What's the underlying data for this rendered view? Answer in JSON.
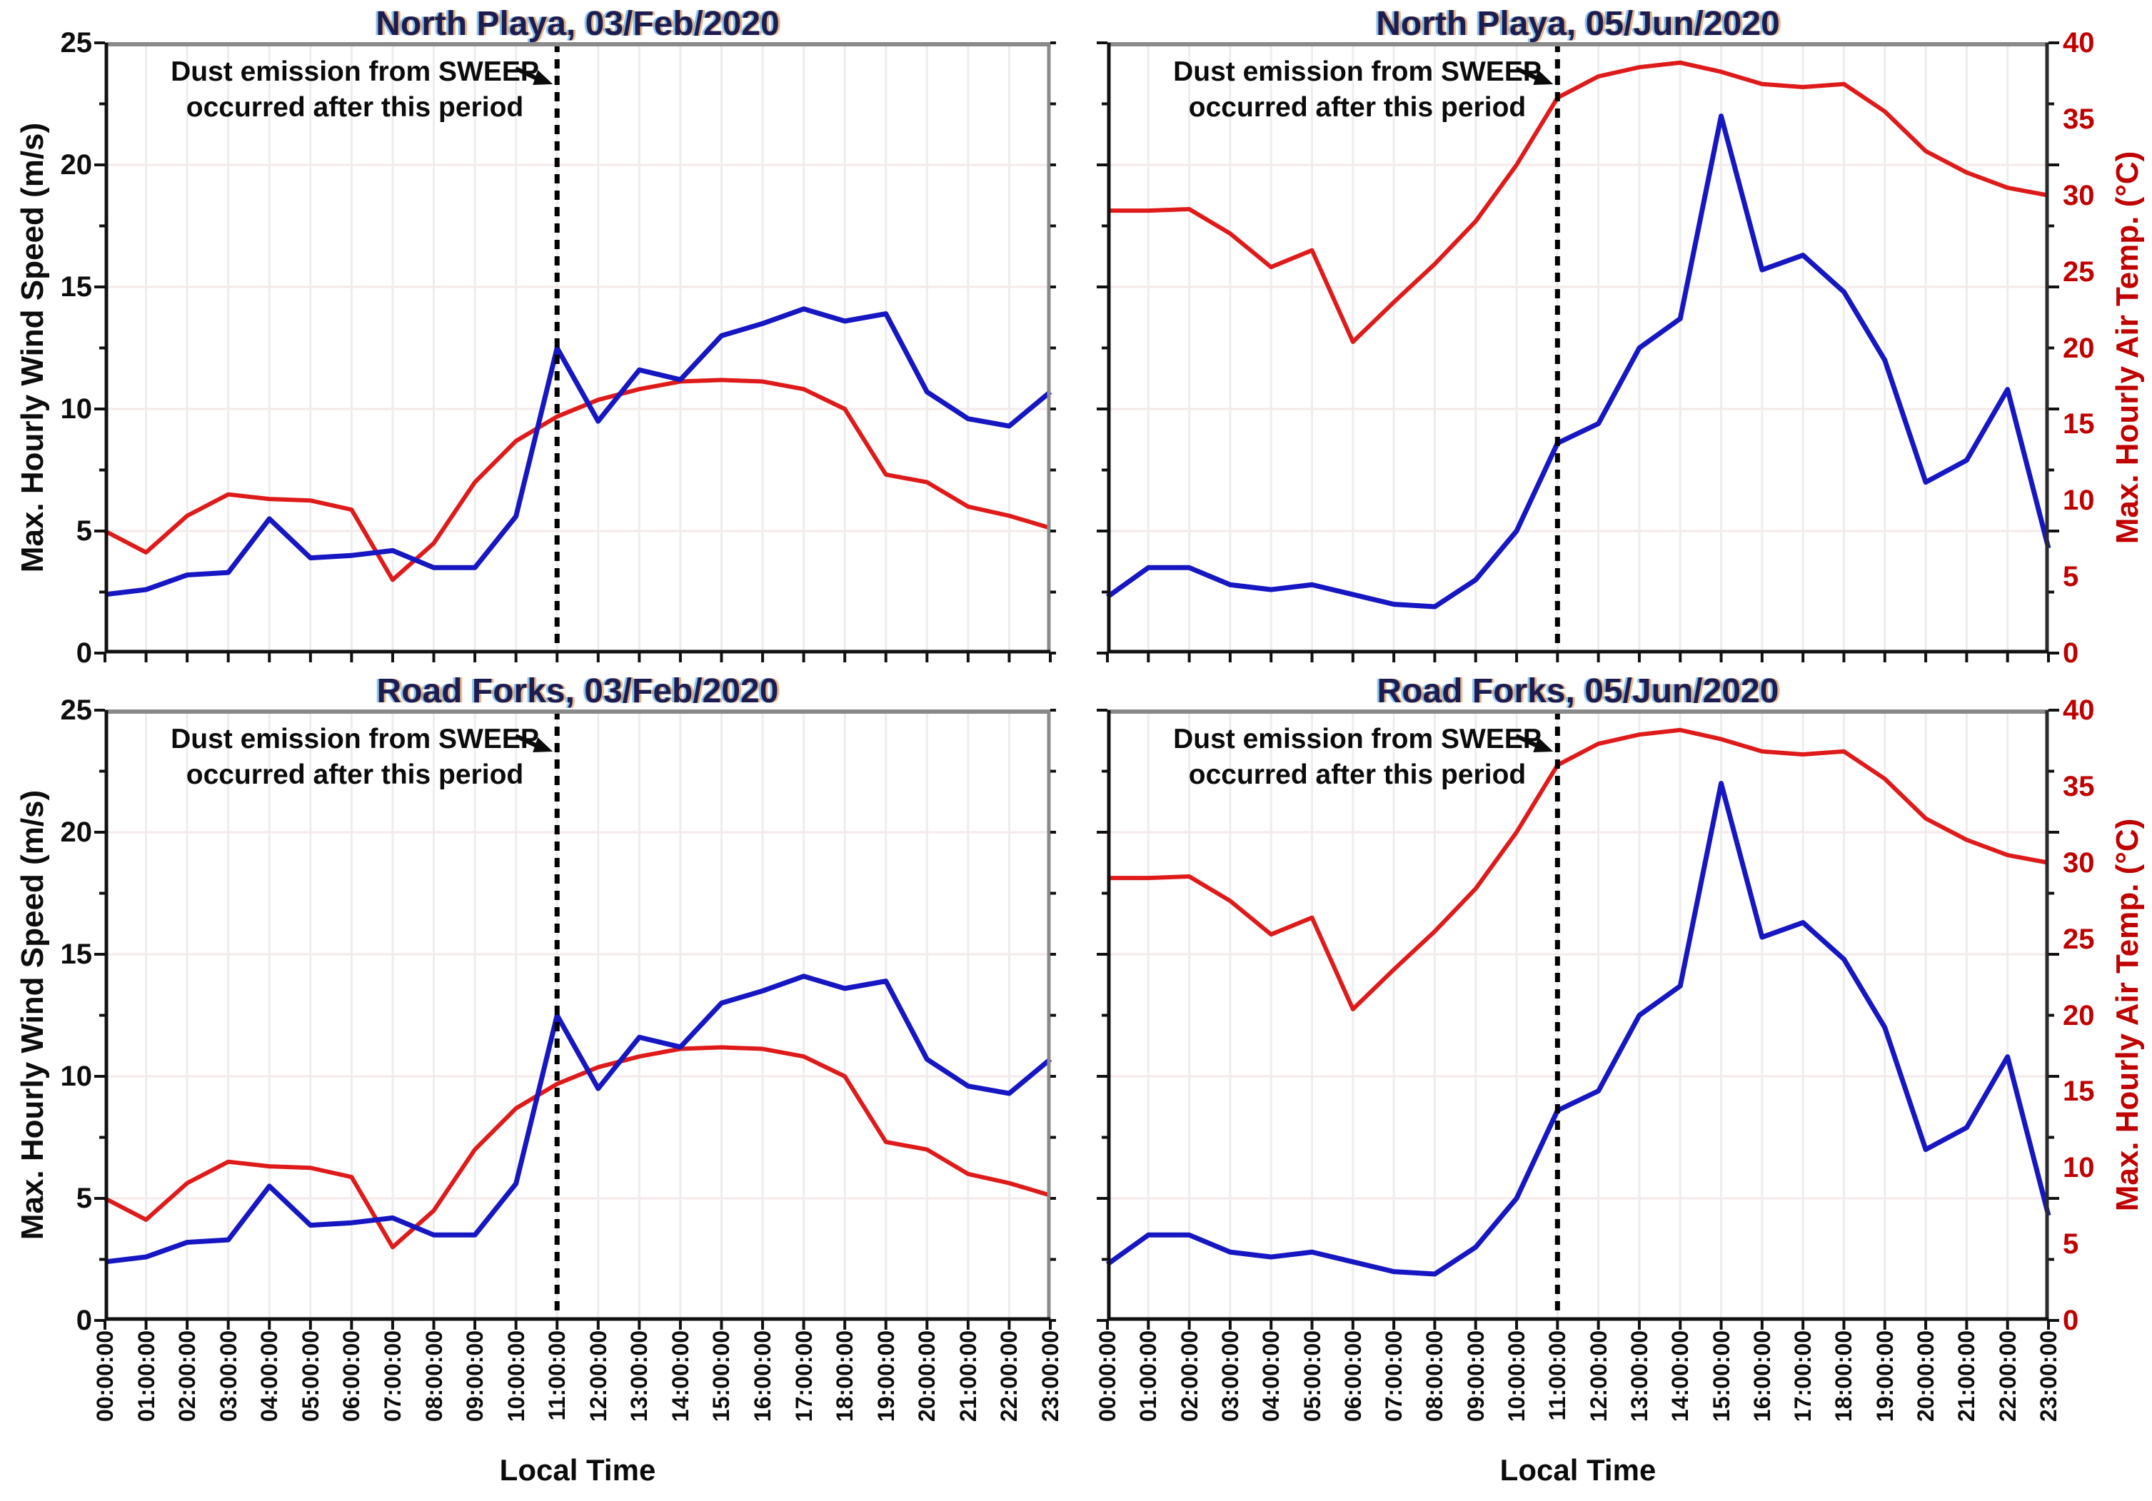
{
  "figure": {
    "xlabel": "Local Time",
    "ylabel_left": "Max. Hourly Wind Speed (m/s)",
    "ylabel_right": "Max. Hourly Air Temp. (°C)",
    "annotation": {
      "line1": "Dust emission from SWEEP",
      "line2": "occurred after this period"
    },
    "grid": true,
    "legend": "none",
    "vline_style": "black dashed vertical line at 11:00:00",
    "colors": {
      "wind_line": "#1616c3",
      "temp_line": "#df1a1a",
      "red_axis_text": "#c00000",
      "title_text": "#1c1c50",
      "grid_vertical": "#ededed",
      "grid_horizontal": "#f6e9e9",
      "spine_dark": "#111111",
      "spine_gray": "#8a8a8a",
      "dashed_line": "#000000"
    },
    "y_left_ticks": [
      "0",
      "5",
      "10",
      "15",
      "20",
      "25"
    ],
    "y_right_ticks": [
      "0",
      "5",
      "10",
      "15",
      "20",
      "25",
      "30",
      "35",
      "40"
    ],
    "x_tick_labels": [
      "00:00:00",
      "01:00:00",
      "02:00:00",
      "03:00:00",
      "04:00:00",
      "05:00:00",
      "06:00:00",
      "07:00:00",
      "08:00:00",
      "09:00:00",
      "10:00:00",
      "11:00:00",
      "12:00:00",
      "13:00:00",
      "14:00:00",
      "15:00:00",
      "16:00:00",
      "17:00:00",
      "18:00:00",
      "19:00:00",
      "20:00:00",
      "21:00:00",
      "22:00:00",
      "23:00:00"
    ]
  },
  "chart_data": [
    {
      "type": "line",
      "position": "top-left",
      "title": "North Playa, 03/Feb/2020",
      "x_hours": [
        0,
        1,
        2,
        3,
        4,
        5,
        6,
        7,
        8,
        9,
        10,
        11,
        12,
        13,
        14,
        15,
        16,
        17,
        18,
        19,
        20,
        21,
        22,
        23
      ],
      "vline_hour": 11,
      "show_x_tick_labels": false,
      "show_left_axis_labels": true,
      "show_right_axis_labels": false,
      "series": [
        {
          "name": "Max. Hourly Wind Speed (m/s)",
          "axis": "left",
          "ylim": [
            0,
            25
          ],
          "color": "#1616c3",
          "values": [
            2.4,
            2.6,
            3.2,
            3.3,
            5.5,
            3.9,
            4.0,
            4.2,
            3.5,
            3.5,
            5.6,
            12.5,
            9.5,
            11.6,
            11.2,
            13.0,
            13.5,
            14.1,
            13.6,
            13.9,
            10.7,
            9.6,
            9.3,
            10.7
          ]
        },
        {
          "name": "Max. Hourly Air Temp. (°C)",
          "axis": "right",
          "ylim": [
            0,
            40
          ],
          "color": "#df1a1a",
          "values": [
            8.0,
            6.6,
            9.0,
            10.4,
            10.1,
            10.0,
            9.4,
            4.8,
            7.2,
            11.2,
            13.9,
            15.5,
            16.6,
            17.3,
            17.8,
            17.9,
            17.8,
            17.3,
            16.0,
            11.7,
            11.2,
            9.6,
            9.0,
            8.2
          ]
        }
      ]
    },
    {
      "type": "line",
      "position": "top-right",
      "title": "North Playa, 05/Jun/2020",
      "x_hours": [
        0,
        1,
        2,
        3,
        4,
        5,
        6,
        7,
        8,
        9,
        10,
        11,
        12,
        13,
        14,
        15,
        16,
        17,
        18,
        19,
        20,
        21,
        22,
        23
      ],
      "vline_hour": 11,
      "show_x_tick_labels": false,
      "show_left_axis_labels": false,
      "show_right_axis_labels": true,
      "series": [
        {
          "name": "Max. Hourly Wind Speed (m/s)",
          "axis": "left",
          "ylim": [
            0,
            25
          ],
          "color": "#1616c3",
          "values": [
            2.3,
            3.5,
            3.5,
            2.8,
            2.6,
            2.8,
            2.4,
            2.0,
            1.9,
            3.0,
            5.0,
            8.6,
            9.4,
            12.5,
            13.7,
            22.0,
            15.7,
            16.3,
            14.8,
            12.0,
            7.0,
            7.9,
            10.8,
            4.3
          ]
        },
        {
          "name": "Max. Hourly Air Temp. (°C)",
          "axis": "right",
          "ylim": [
            0,
            40
          ],
          "color": "#df1a1a",
          "values": [
            29.0,
            29.0,
            29.1,
            27.5,
            25.3,
            26.4,
            20.4,
            23.0,
            25.5,
            28.3,
            32.0,
            36.4,
            37.8,
            38.4,
            38.7,
            38.1,
            37.3,
            37.1,
            37.3,
            35.5,
            32.9,
            31.5,
            30.5,
            30.0
          ]
        }
      ]
    },
    {
      "type": "line",
      "position": "bottom-left",
      "title": "Road Forks, 03/Feb/2020",
      "x_hours": [
        0,
        1,
        2,
        3,
        4,
        5,
        6,
        7,
        8,
        9,
        10,
        11,
        12,
        13,
        14,
        15,
        16,
        17,
        18,
        19,
        20,
        21,
        22,
        23
      ],
      "vline_hour": 11,
      "show_x_tick_labels": true,
      "show_left_axis_labels": true,
      "show_right_axis_labels": false,
      "series": [
        {
          "name": "Max. Hourly Wind Speed (m/s)",
          "axis": "left",
          "ylim": [
            0,
            25
          ],
          "color": "#1616c3",
          "values": [
            2.4,
            2.6,
            3.2,
            3.3,
            5.5,
            3.9,
            4.0,
            4.2,
            3.5,
            3.5,
            5.6,
            12.5,
            9.5,
            11.6,
            11.2,
            13.0,
            13.5,
            14.1,
            13.6,
            13.9,
            10.7,
            9.6,
            9.3,
            10.7
          ]
        },
        {
          "name": "Max. Hourly Air Temp. (°C)",
          "axis": "right",
          "ylim": [
            0,
            40
          ],
          "color": "#df1a1a",
          "values": [
            8.0,
            6.6,
            9.0,
            10.4,
            10.1,
            10.0,
            9.4,
            4.8,
            7.2,
            11.2,
            13.9,
            15.5,
            16.6,
            17.3,
            17.8,
            17.9,
            17.8,
            17.3,
            16.0,
            11.7,
            11.2,
            9.6,
            9.0,
            8.2
          ]
        }
      ]
    },
    {
      "type": "line",
      "position": "bottom-right",
      "title": "Road Forks, 05/Jun/2020",
      "x_hours": [
        0,
        1,
        2,
        3,
        4,
        5,
        6,
        7,
        8,
        9,
        10,
        11,
        12,
        13,
        14,
        15,
        16,
        17,
        18,
        19,
        20,
        21,
        22,
        23
      ],
      "vline_hour": 11,
      "show_x_tick_labels": true,
      "show_left_axis_labels": false,
      "show_right_axis_labels": true,
      "series": [
        {
          "name": "Max. Hourly Wind Speed (m/s)",
          "axis": "left",
          "ylim": [
            0,
            25
          ],
          "color": "#1616c3",
          "values": [
            2.3,
            3.5,
            3.5,
            2.8,
            2.6,
            2.8,
            2.4,
            2.0,
            1.9,
            3.0,
            5.0,
            8.6,
            9.4,
            12.5,
            13.7,
            22.0,
            15.7,
            16.3,
            14.8,
            12.0,
            7.0,
            7.9,
            10.8,
            4.3
          ]
        },
        {
          "name": "Max. Hourly Air Temp. (°C)",
          "axis": "right",
          "ylim": [
            0,
            40
          ],
          "color": "#df1a1a",
          "values": [
            29.0,
            29.0,
            29.1,
            27.5,
            25.3,
            26.4,
            20.4,
            23.0,
            25.5,
            28.3,
            32.0,
            36.4,
            37.8,
            38.4,
            38.7,
            38.1,
            37.3,
            37.1,
            37.3,
            35.5,
            32.9,
            31.5,
            30.5,
            30.0
          ]
        }
      ]
    }
  ]
}
